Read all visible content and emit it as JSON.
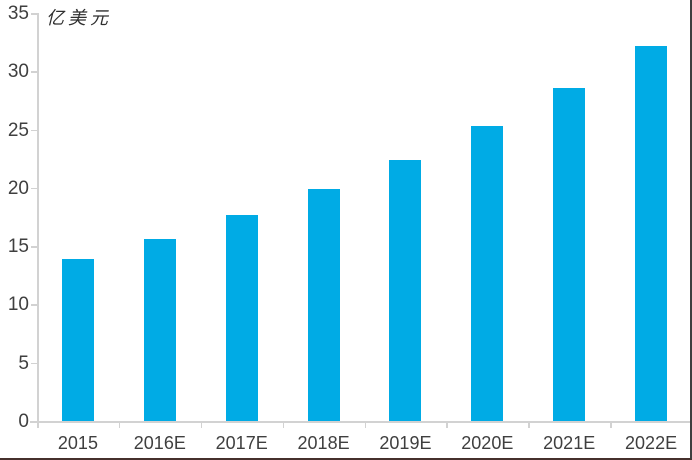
{
  "chart_data": {
    "type": "bar",
    "title": "",
    "ylabel": "亿美元",
    "xlabel": "",
    "categories": [
      "2015",
      "2016E",
      "2017E",
      "2018E",
      "2019E",
      "2020E",
      "2021E",
      "2022E"
    ],
    "values": [
      13.9,
      15.6,
      17.7,
      19.9,
      22.4,
      25.3,
      28.6,
      32.2
    ],
    "ylim": [
      0,
      35
    ],
    "ytick_step": 5,
    "yticks": [
      0,
      5,
      10,
      15,
      20,
      25,
      30,
      35
    ],
    "grid": false,
    "legend": "none",
    "data_labels": false,
    "bar_color": "#00abe5",
    "axis_color": "#d2d2d2",
    "label_color": "#3f3f3f"
  }
}
